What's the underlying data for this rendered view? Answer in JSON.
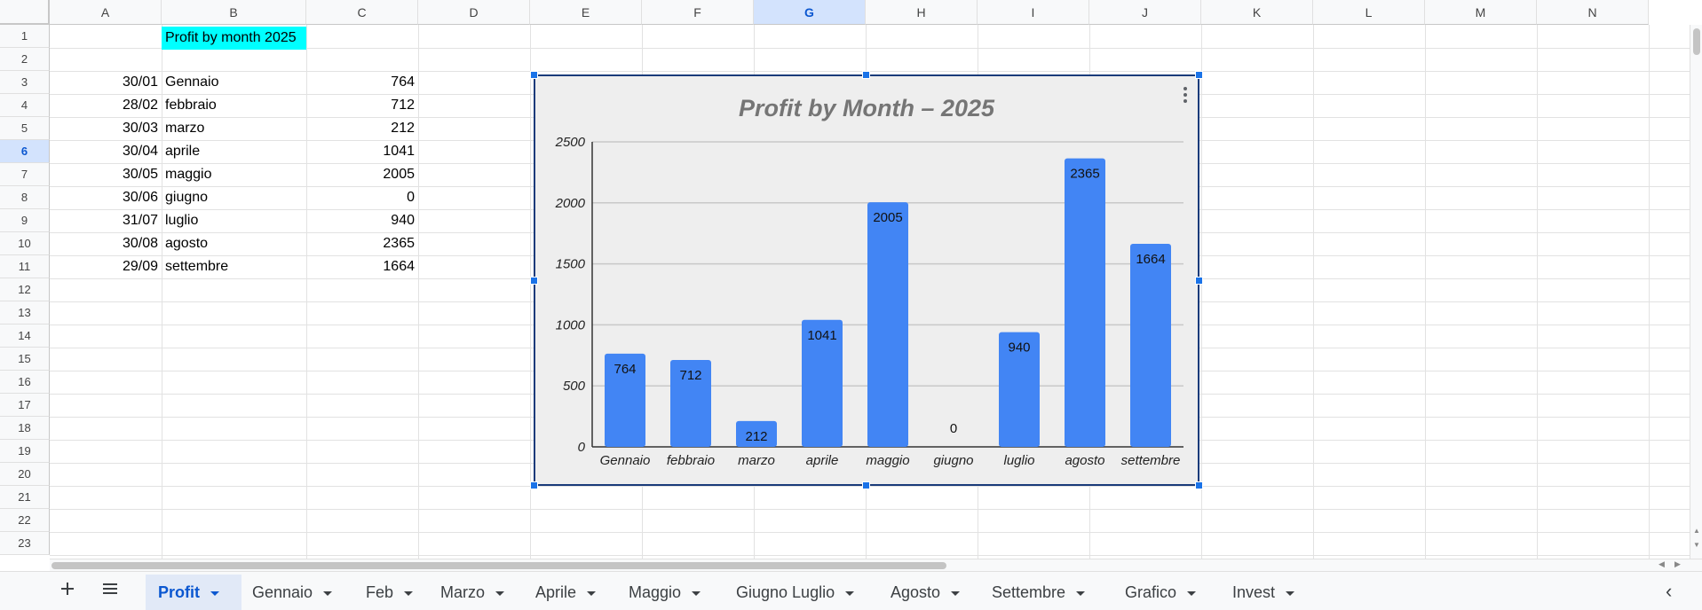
{
  "columns": [
    "A",
    "B",
    "C",
    "D",
    "E",
    "F",
    "G",
    "H",
    "I",
    "J",
    "K",
    "L",
    "M",
    "N"
  ],
  "selected_column": "G",
  "rows": [
    "1",
    "2",
    "3",
    "4",
    "5",
    "6",
    "7",
    "8",
    "9",
    "10",
    "11",
    "12",
    "13",
    "14",
    "15",
    "16",
    "17",
    "18",
    "19",
    "20",
    "21",
    "22",
    "23"
  ],
  "selected_row": "6",
  "sheet": {
    "b1_title": "Profit by month 2025",
    "data_rows": [
      {
        "date": "30/01",
        "month": "Gennaio",
        "value": "764"
      },
      {
        "date": "28/02",
        "month": "febbraio",
        "value": "712"
      },
      {
        "date": "30/03",
        "month": "marzo",
        "value": "212"
      },
      {
        "date": "30/04",
        "month": "aprile",
        "value": "1041"
      },
      {
        "date": "30/05",
        "month": "maggio",
        "value": "2005"
      },
      {
        "date": "30/06",
        "month": "giugno",
        "value": "0"
      },
      {
        "date": "31/07",
        "month": "luglio",
        "value": "940"
      },
      {
        "date": "30/08",
        "month": "agosto",
        "value": "2365"
      },
      {
        "date": "29/09",
        "month": "settembre",
        "value": "1664"
      }
    ]
  },
  "colors": {
    "bar": "#4285f4",
    "title_cell_bg": "#00ffff",
    "chart_bg": "#eeeeee",
    "selection": "#1a73e8"
  },
  "chart_data": {
    "type": "bar",
    "title": "Profit by Month – 2025",
    "categories": [
      "Gennaio",
      "febbraio",
      "marzo",
      "aprile",
      "maggio",
      "giugno",
      "luglio",
      "agosto",
      "settembre"
    ],
    "values": [
      764,
      712,
      212,
      1041,
      2005,
      0,
      940,
      2365,
      1664
    ],
    "yticks": [
      0,
      500,
      1000,
      1500,
      2000,
      2500
    ],
    "ylim": [
      0,
      2500
    ],
    "grid": true,
    "legend": "none",
    "data_labels": true
  },
  "bottom_bar": {
    "add_sheet_icon": "plus-icon",
    "all_sheets_icon": "menu-icon",
    "tabs": [
      "Profit",
      "Gennaio",
      "Feb",
      "Marzo",
      "Aprile",
      "Maggio",
      "Giugno Luglio",
      "Agosto",
      "Settembre",
      "Grafico",
      "Invest"
    ],
    "active_tab": "Profit",
    "collapse_icon": "chevron-left-icon"
  }
}
